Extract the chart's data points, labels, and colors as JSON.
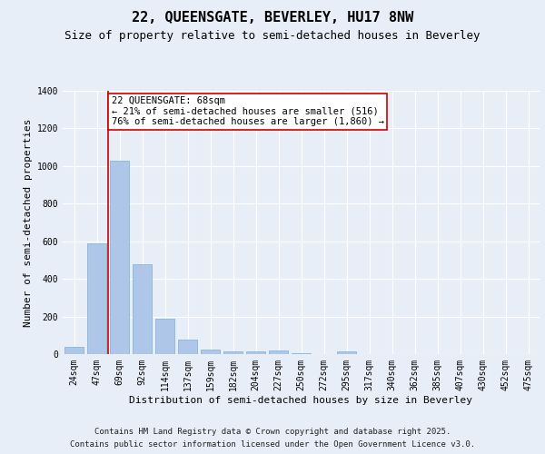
{
  "title": "22, QUEENSGATE, BEVERLEY, HU17 8NW",
  "subtitle": "Size of property relative to semi-detached houses in Beverley",
  "xlabel": "Distribution of semi-detached houses by size in Beverley",
  "ylabel": "Number of semi-detached properties",
  "categories": [
    "24sqm",
    "47sqm",
    "69sqm",
    "92sqm",
    "114sqm",
    "137sqm",
    "159sqm",
    "182sqm",
    "204sqm",
    "227sqm",
    "250sqm",
    "272sqm",
    "295sqm",
    "317sqm",
    "340sqm",
    "362sqm",
    "385sqm",
    "407sqm",
    "430sqm",
    "452sqm",
    "475sqm"
  ],
  "values": [
    40,
    590,
    1030,
    480,
    190,
    75,
    25,
    15,
    15,
    20,
    5,
    0,
    15,
    0,
    0,
    0,
    0,
    0,
    0,
    0,
    0
  ],
  "bar_color": "#aec6e8",
  "bar_edge_color": "#7aaed4",
  "marker_line_color": "#cc0000",
  "annotation_text": "22 QUEENSGATE: 68sqm\n← 21% of semi-detached houses are smaller (516)\n76% of semi-detached houses are larger (1,860) →",
  "annotation_box_color": "#ffffff",
  "annotation_box_edge_color": "#cc0000",
  "ylim": [
    0,
    1400
  ],
  "yticks": [
    0,
    200,
    400,
    600,
    800,
    1000,
    1200,
    1400
  ],
  "bg_color": "#e8eef8",
  "plot_bg_color": "#e8eef8",
  "grid_color": "#ffffff",
  "footer_line1": "Contains HM Land Registry data © Crown copyright and database right 2025.",
  "footer_line2": "Contains public sector information licensed under the Open Government Licence v3.0.",
  "title_fontsize": 11,
  "subtitle_fontsize": 9,
  "axis_label_fontsize": 8,
  "tick_fontsize": 7,
  "annotation_fontsize": 7.5,
  "footer_fontsize": 6.5
}
